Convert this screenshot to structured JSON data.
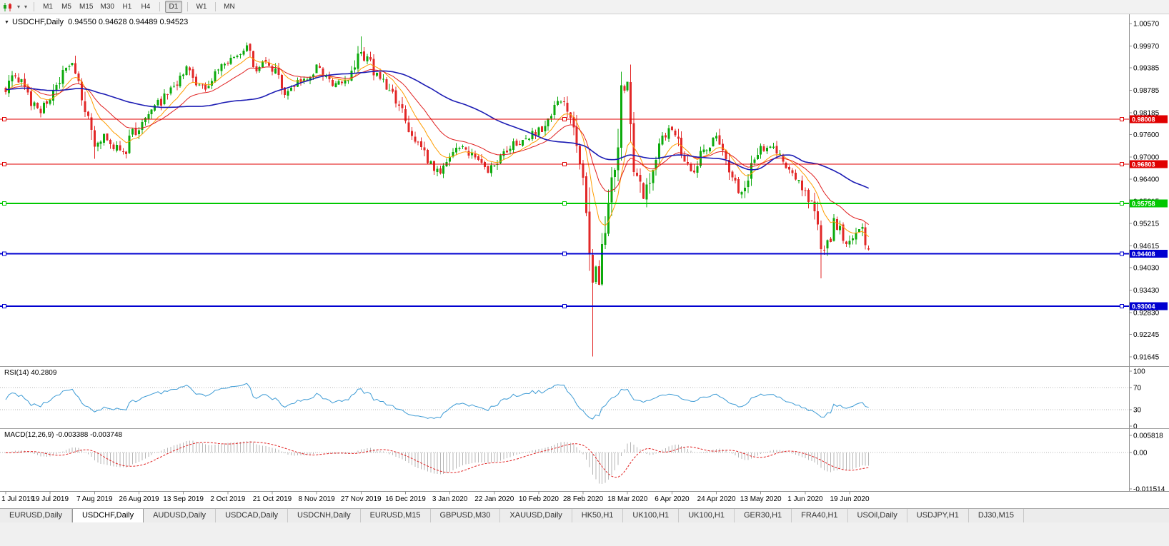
{
  "toolbar": {
    "timeframes": [
      {
        "label": "M1",
        "active": false,
        "sep_before": false
      },
      {
        "label": "M5",
        "active": false,
        "sep_before": false
      },
      {
        "label": "M15",
        "active": false,
        "sep_before": false
      },
      {
        "label": "M30",
        "active": false,
        "sep_before": false
      },
      {
        "label": "H1",
        "active": false,
        "sep_before": false
      },
      {
        "label": "H4",
        "active": false,
        "sep_before": false
      },
      {
        "label": "D1",
        "active": true,
        "sep_before": true
      },
      {
        "label": "W1",
        "active": false,
        "sep_before": true
      },
      {
        "label": "MN",
        "active": false,
        "sep_before": true
      }
    ]
  },
  "chart": {
    "title": "USDCHF,Daily",
    "ohlc": "0.94550 0.94628 0.94489 0.94523",
    "open": "0.94550",
    "high": "0.94628",
    "low": "0.94489",
    "close": "0.94523"
  },
  "indicators": {
    "rsi": {
      "label": "RSI(14) 40.2809"
    },
    "macd": {
      "label": "MACD(12,26,9) -0.003388 -0.003748"
    }
  },
  "tabs": [
    {
      "label": "EURUSD,Daily",
      "active": false
    },
    {
      "label": "USDCHF,Daily",
      "active": true
    },
    {
      "label": "AUDUSD,Daily",
      "active": false
    },
    {
      "label": "USDCAD,Daily",
      "active": false
    },
    {
      "label": "USDCNH,Daily",
      "active": false
    },
    {
      "label": "EURUSD,M15",
      "active": false
    },
    {
      "label": "GBPUSD,M30",
      "active": false
    },
    {
      "label": "XAUUSD,Daily",
      "active": false
    },
    {
      "label": "HK50,H1",
      "active": false
    },
    {
      "label": "UK100,H1",
      "active": false
    },
    {
      "label": "UK100,H1",
      "active": false
    },
    {
      "label": "GER30,H1",
      "active": false
    },
    {
      "label": "FRA40,H1",
      "active": false
    },
    {
      "label": "USOil,Daily",
      "active": false
    },
    {
      "label": "USDJPY,H1",
      "active": false
    },
    {
      "label": "DJ30,M15",
      "active": false
    }
  ],
  "chart_data": {
    "type": "candlestick",
    "symbol": "USDCHF",
    "timeframe": "Daily",
    "n_candles": 273,
    "seed": 20200630,
    "last_ohlc": {
      "open": 0.9455,
      "high": 0.94628,
      "low": 0.94489,
      "close": 0.94523
    },
    "anchors": [
      [
        0,
        0.9885
      ],
      [
        3,
        0.9925
      ],
      [
        6,
        0.9872
      ],
      [
        10,
        0.9822
      ],
      [
        14,
        0.9858
      ],
      [
        18,
        0.992
      ],
      [
        21,
        0.994
      ],
      [
        24,
        0.9868
      ],
      [
        26,
        0.979
      ],
      [
        28,
        0.9722
      ],
      [
        31,
        0.976
      ],
      [
        34,
        0.9732
      ],
      [
        37,
        0.9708
      ],
      [
        40,
        0.976
      ],
      [
        43,
        0.979
      ],
      [
        46,
        0.9822
      ],
      [
        50,
        0.986
      ],
      [
        54,
        0.99
      ],
      [
        57,
        0.9935
      ],
      [
        60,
        0.9902
      ],
      [
        63,
        0.9878
      ],
      [
        66,
        0.9915
      ],
      [
        69,
        0.9945
      ],
      [
        73,
        0.9968
      ],
      [
        76,
        0.999
      ],
      [
        79,
        0.994
      ],
      [
        82,
        0.9955
      ],
      [
        85,
        0.9928
      ],
      [
        88,
        0.9872
      ],
      [
        91,
        0.989
      ],
      [
        94,
        0.9912
      ],
      [
        98,
        0.9938
      ],
      [
        101,
        0.9908
      ],
      [
        104,
        0.9892
      ],
      [
        107,
        0.9902
      ],
      [
        110,
        0.993
      ],
      [
        112,
        0.9985
      ],
      [
        114,
        0.996
      ],
      [
        117,
        0.9915
      ],
      [
        120,
        0.989
      ],
      [
        123,
        0.9848
      ],
      [
        126,
        0.9798
      ],
      [
        129,
        0.9742
      ],
      [
        133,
        0.969
      ],
      [
        137,
        0.9655
      ],
      [
        140,
        0.9692
      ],
      [
        144,
        0.973
      ],
      [
        148,
        0.9694
      ],
      [
        152,
        0.9655
      ],
      [
        155,
        0.969
      ],
      [
        158,
        0.9722
      ],
      [
        162,
        0.974
      ],
      [
        166,
        0.9762
      ],
      [
        169,
        0.9778
      ],
      [
        172,
        0.9812
      ],
      [
        175,
        0.9848
      ],
      [
        178,
        0.9805
      ],
      [
        180,
        0.9722
      ],
      [
        182,
        0.9625
      ],
      [
        184,
        0.9505
      ],
      [
        185,
        0.9335
      ],
      [
        186,
        0.9395
      ],
      [
        187,
        0.9345
      ],
      [
        188,
        0.945
      ],
      [
        190,
        0.9565
      ],
      [
        192,
        0.9685
      ],
      [
        194,
        0.9865
      ],
      [
        196,
        0.988
      ],
      [
        198,
        0.9695
      ],
      [
        201,
        0.9595
      ],
      [
        204,
        0.9685
      ],
      [
        207,
        0.9745
      ],
      [
        210,
        0.9775
      ],
      [
        213,
        0.9705
      ],
      [
        216,
        0.9655
      ],
      [
        219,
        0.9705
      ],
      [
        222,
        0.9735
      ],
      [
        224,
        0.975
      ],
      [
        227,
        0.9705
      ],
      [
        230,
        0.9625
      ],
      [
        232,
        0.9605
      ],
      [
        235,
        0.9668
      ],
      [
        238,
        0.9722
      ],
      [
        241,
        0.9735
      ],
      [
        244,
        0.9705
      ],
      [
        247,
        0.9665
      ],
      [
        250,
        0.9635
      ],
      [
        252,
        0.9605
      ],
      [
        254,
        0.9565
      ],
      [
        256,
        0.9495
      ],
      [
        257,
        0.9435
      ],
      [
        259,
        0.9458
      ],
      [
        261,
        0.9525
      ],
      [
        263,
        0.9505
      ],
      [
        265,
        0.9475
      ],
      [
        267,
        0.9495
      ],
      [
        269,
        0.9515
      ],
      [
        271,
        0.947
      ],
      [
        272,
        0.94523
      ]
    ],
    "overrides": [
      {
        "day": 21,
        "high": 0.995
      },
      {
        "day": 28,
        "low": 0.9695
      },
      {
        "day": 112,
        "high": 1.0023
      },
      {
        "day": 185,
        "low": 0.9165
      },
      {
        "day": 196,
        "high": 0.9901
      },
      {
        "day": 257,
        "low": 0.9375
      },
      {
        "day": 272,
        "open": 0.9455,
        "high": 0.94628,
        "low": 0.94489,
        "close": 0.94523
      }
    ],
    "colors": {
      "up": "#0caa0c",
      "down": "#e22828",
      "background": "#ffffff",
      "axis_text": "#000000"
    },
    "moving_averages": [
      {
        "name": "ma-fast",
        "type": "ema",
        "period": 10,
        "color": "#ff9d00",
        "width": 1
      },
      {
        "name": "ma-medium",
        "type": "ema",
        "period": 22,
        "color": "#e02020",
        "width": 1
      },
      {
        "name": "ma-slow",
        "type": "sma",
        "period": 55,
        "color": "#1c1cb4",
        "width": 1.6
      }
    ],
    "hlines": [
      {
        "price": 0.98008,
        "label": "0.98008",
        "color": "#e00000",
        "width": 1
      },
      {
        "price": 0.96803,
        "label": "0.96803",
        "color": "#e00000",
        "width": 1
      },
      {
        "price": 0.95758,
        "label": "0.95758",
        "color": "#00c800",
        "width": 2
      },
      {
        "price": 0.94408,
        "label": "0.94408",
        "color": "#0000d0",
        "width": 2
      },
      {
        "price": 0.93004,
        "label": "0.93004",
        "color": "#0000d0",
        "width": 2
      }
    ],
    "price_axis": [
      {
        "v": 1.0057,
        "label": "1.00570"
      },
      {
        "v": 0.9997,
        "label": "0.99970"
      },
      {
        "v": 0.99385,
        "label": "0.99385"
      },
      {
        "v": 0.98785,
        "label": "0.98785"
      },
      {
        "v": 0.98185,
        "label": "0.98185"
      },
      {
        "v": 0.976,
        "label": "0.97600"
      },
      {
        "v": 0.97,
        "label": "0.97000"
      },
      {
        "v": 0.964,
        "label": "0.96400"
      },
      {
        "v": 0.95815,
        "label": "0.95815"
      },
      {
        "v": 0.95215,
        "label": "0.95215"
      },
      {
        "v": 0.94615,
        "label": "0.94615"
      },
      {
        "v": 0.9403,
        "label": "0.94030"
      },
      {
        "v": 0.9343,
        "label": "0.93430"
      },
      {
        "v": 0.9283,
        "label": "0.92830"
      },
      {
        "v": 0.92245,
        "label": "0.92245"
      },
      {
        "v": 0.91645,
        "label": "0.91645"
      }
    ],
    "date_axis": [
      {
        "day": 0,
        "label": "1 Jul 2019"
      },
      {
        "day": 14,
        "label": "19 Jul 2019"
      },
      {
        "day": 28,
        "label": "7 Aug 2019"
      },
      {
        "day": 42,
        "label": "26 Aug 2019"
      },
      {
        "day": 56,
        "label": "13 Sep 2019"
      },
      {
        "day": 70,
        "label": "2 Oct 2019"
      },
      {
        "day": 84,
        "label": "21 Oct 2019"
      },
      {
        "day": 98,
        "label": "8 Nov 2019"
      },
      {
        "day": 112,
        "label": "27 Nov 2019"
      },
      {
        "day": 126,
        "label": "16 Dec 2019"
      },
      {
        "day": 140,
        "label": "3 Jan 2020"
      },
      {
        "day": 154,
        "label": "22 Jan 2020"
      },
      {
        "day": 168,
        "label": "10 Feb 2020"
      },
      {
        "day": 182,
        "label": "28 Feb 2020"
      },
      {
        "day": 196,
        "label": "18 Mar 2020"
      },
      {
        "day": 210,
        "label": "6 Apr 2020"
      },
      {
        "day": 224,
        "label": "24 Apr 2020"
      },
      {
        "day": 238,
        "label": "13 May 2020"
      },
      {
        "day": 252,
        "label": "1 Jun 2020"
      },
      {
        "day": 266,
        "label": "19 Jun 2020"
      }
    ],
    "rsi": {
      "period": 14,
      "value": 40.2809,
      "color": "#3d9bd5",
      "levels": [
        {
          "v": 100,
          "label": "100"
        },
        {
          "v": 70,
          "label": "70"
        },
        {
          "v": 30,
          "label": "30"
        },
        {
          "v": 0,
          "label": "0"
        }
      ]
    },
    "macd": {
      "fast": 12,
      "slow": 26,
      "signal": 9,
      "main_value": -0.003388,
      "signal_value": -0.003748,
      "hist_color": "#b6b6b6",
      "signal_color": "#e02020",
      "axis": [
        {
          "v": 0.005818,
          "label": "0.005818"
        },
        {
          "v": 0,
          "label": "0.00"
        },
        {
          "v": -0.011514,
          "label": "-0.011514"
        }
      ]
    }
  }
}
